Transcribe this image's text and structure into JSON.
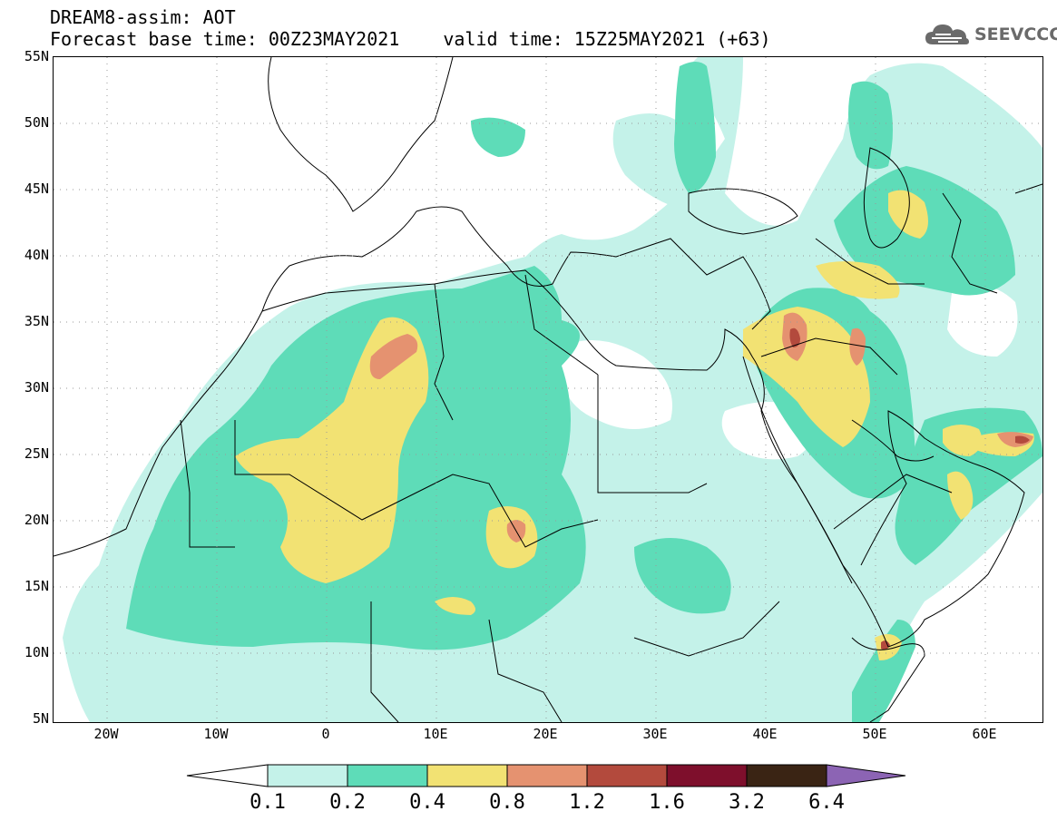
{
  "header": {
    "model_line": "DREAM8-assim: AOT",
    "base_time": "Forecast base time: 00Z23MAY2021",
    "valid_time": "valid time: 15Z25MAY2021 (+63)",
    "logo_text": "SEEVCCC"
  },
  "map": {
    "lat_labels": [
      "55N",
      "50N",
      "45N",
      "40N",
      "35N",
      "30N",
      "25N",
      "20N",
      "15N",
      "10N",
      "5N"
    ],
    "lon_labels": [
      "20W",
      "10W",
      "0",
      "10E",
      "20E",
      "30E",
      "40E",
      "50E",
      "60E"
    ],
    "colors": {
      "c1": "#c4f2e9",
      "c2": "#5edcb8",
      "c3": "#f2e273",
      "c4": "#e59270",
      "c5": "#b34a3d",
      "c6": "#7e0f2c",
      "c7": "#3a2414",
      "c8": "#8c64b4"
    }
  },
  "colorbar": {
    "labels": [
      "0.1",
      "0.2",
      "0.4",
      "0.8",
      "1.2",
      "1.6",
      "3.2",
      "6.4"
    ]
  }
}
